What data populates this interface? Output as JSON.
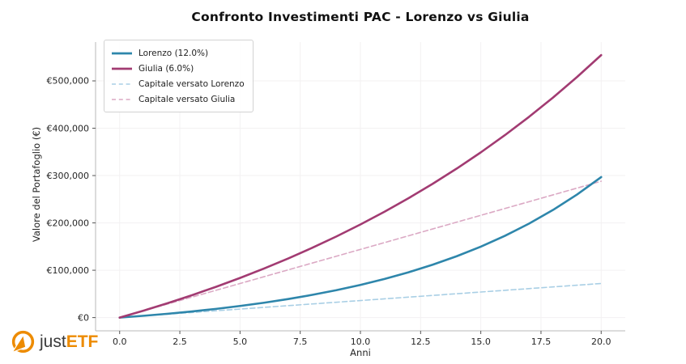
{
  "chart_data": {
    "type": "line",
    "title": "Confronto Investimenti PAC - Lorenzo vs Giulia",
    "xlabel": "Anni",
    "ylabel": "Valore del Portafoglio (€)",
    "grid": true,
    "legend_position": "upper left",
    "xlim": [
      -1,
      21
    ],
    "ylim": [
      -28000,
      582000
    ],
    "x": [
      0,
      1,
      2,
      3,
      4,
      5,
      6,
      7,
      8,
      9,
      10,
      11,
      12,
      13,
      14,
      15,
      16,
      17,
      18,
      19,
      20
    ],
    "series": [
      {
        "name": "Lorenzo (12.0%)",
        "color": "#2E86AB",
        "style": "solid",
        "width": 2.6,
        "values": [
          0,
          3805,
          8092,
          12923,
          18367,
          24501,
          31413,
          39202,
          47978,
          57868,
          69012,
          81569,
          95718,
          111663,
          129629,
          149874,
          172687,
          198392,
          227358,
          259998,
          296777
        ]
      },
      {
        "name": "Giulia (6.0%)",
        "color": "#A23B72",
        "style": "solid",
        "width": 2.6,
        "values": [
          0,
          14803,
          30518,
          47203,
          64917,
          83724,
          103691,
          124889,
          147394,
          171288,
          196655,
          223587,
          252180,
          282537,
          314766,
          348982,
          385310,
          423877,
          464824,
          508296,
          554449
        ]
      },
      {
        "name": "Capitale versato Lorenzo",
        "color": "#A9CFE5",
        "style": "dashed",
        "width": 1.6,
        "values": [
          0,
          3600,
          7200,
          10800,
          14400,
          18000,
          21600,
          25200,
          28800,
          32400,
          36000,
          39600,
          43200,
          46800,
          50400,
          54000,
          57600,
          61200,
          64800,
          68400,
          72000
        ]
      },
      {
        "name": "Capitale versato Giulia",
        "color": "#DBA9C4",
        "style": "dashed",
        "width": 1.6,
        "values": [
          0,
          14400,
          28800,
          43200,
          57600,
          72000,
          86400,
          100800,
          115200,
          129600,
          144000,
          158400,
          172800,
          187200,
          201600,
          216000,
          230400,
          244800,
          259200,
          273600,
          288000
        ]
      }
    ],
    "x_ticks": {
      "values": [
        0,
        2.5,
        5,
        7.5,
        10,
        12.5,
        15,
        17.5,
        20
      ],
      "labels": [
        "0.0",
        "2.5",
        "5.0",
        "7.5",
        "10.0",
        "12.5",
        "15.0",
        "17.5",
        "20.0"
      ]
    },
    "y_ticks": {
      "values": [
        0,
        100000,
        200000,
        300000,
        400000,
        500000
      ],
      "labels": [
        "€0",
        "€100,000",
        "€200,000",
        "€300,000",
        "€400,000",
        "€500,000"
      ]
    }
  },
  "branding": {
    "logo_text_regular": "just",
    "logo_text_bold": "ETF",
    "logo_orange": "#ED8B00",
    "logo_dark": "#3B3B3B"
  },
  "colors": {
    "background": "#ffffff",
    "grid": "#f3f1f2",
    "spine": "#b8b8b8",
    "tick": "#555555",
    "tick_label": "#262626",
    "title": "#111111"
  }
}
